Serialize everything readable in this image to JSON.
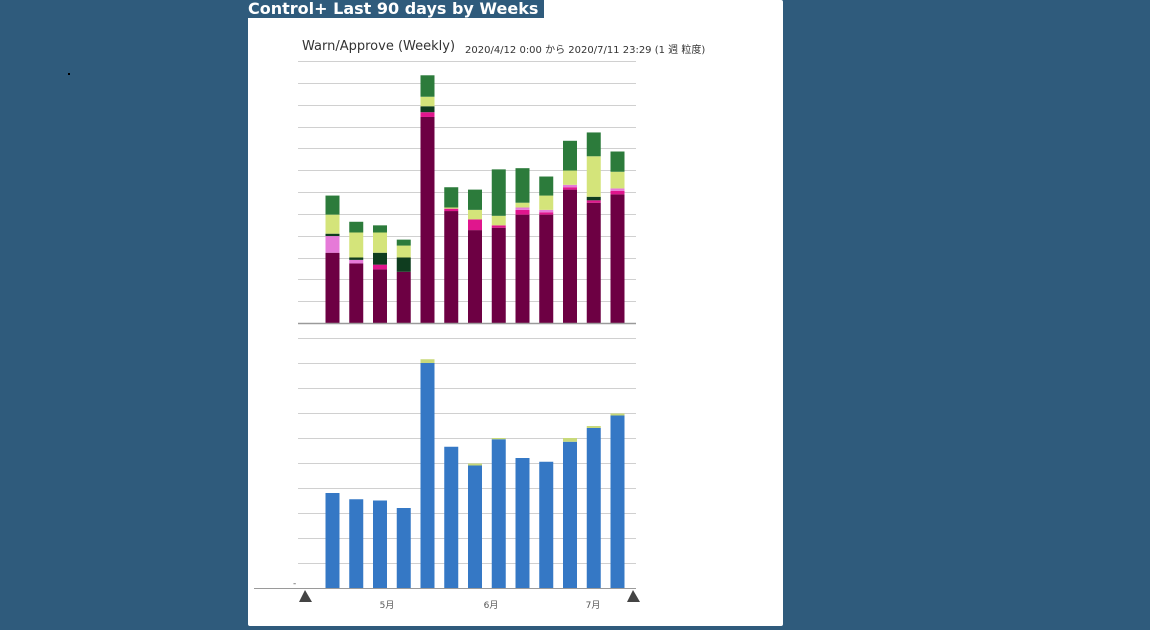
{
  "page": {
    "title": "Control+ Last 90 days by Weeks"
  },
  "chart_data": [
    {
      "type": "bar",
      "stacked": true,
      "title": "Warn/Approve (Weekly)",
      "subtitle": "2020/4/12 0:00 から 2020/7/11 23:29 (1 週 粒度)",
      "categories": [
        "2020-04-19",
        "2020-04-26",
        "2020-05-03",
        "2020-05-10",
        "2020-05-17",
        "2020-05-24",
        "2020-05-31",
        "2020-06-07",
        "2020-06-14",
        "2020-06-21",
        "2020-06-28",
        "2020-07-05",
        "2020-07-12"
      ],
      "xlabel": "",
      "ylabel": "",
      "ylim": [
        0,
        110
      ],
      "grid": true,
      "series": [
        {
          "color": "#6d0043",
          "values": [
            29.5,
            25,
            22.5,
            21.5,
            86.5,
            47,
            39,
            40,
            45.5,
            45.5,
            56,
            50.5,
            54
          ]
        },
        {
          "color": "#e0168d",
          "values": [
            0,
            0,
            2,
            0,
            2,
            1,
            4.5,
            1,
            2,
            1,
            1,
            1,
            1.5
          ]
        },
        {
          "color": "#e67ad8",
          "values": [
            7,
            1.5,
            0,
            0,
            0,
            0,
            0,
            0,
            1,
            1,
            1,
            0,
            1
          ]
        },
        {
          "color": "#0f3d1f",
          "values": [
            1,
            1,
            5,
            6,
            2.5,
            0,
            0,
            0,
            0,
            0,
            0,
            1.5,
            0
          ]
        },
        {
          "color": "#d4e47a",
          "values": [
            8,
            10.5,
            8.5,
            5,
            4,
            0.5,
            4,
            4,
            2,
            6,
            6,
            17,
            7
          ]
        },
        {
          "color": "#2c7b3b",
          "values": [
            8,
            4.5,
            3,
            2.5,
            9,
            8.5,
            8.5,
            19.5,
            14.5,
            8,
            12.5,
            10,
            8.5
          ]
        }
      ]
    },
    {
      "type": "bar",
      "stacked": true,
      "categories": [
        "2020-04-19",
        "2020-04-26",
        "2020-05-03",
        "2020-05-10",
        "2020-05-17",
        "2020-05-24",
        "2020-05-31",
        "2020-06-07",
        "2020-06-14",
        "2020-06-21",
        "2020-06-28",
        "2020-07-05",
        "2020-07-12"
      ],
      "xlabel": "",
      "ylabel": "",
      "ylim": [
        0,
        1000
      ],
      "grid": true,
      "x_tick_labels": [
        {
          "label": "5月",
          "at": "2020-05-01"
        },
        {
          "label": "6月",
          "at": "2020-06-01"
        },
        {
          "label": "7月",
          "at": "2020-07-01"
        }
      ],
      "series": [
        {
          "color": "#3578c5",
          "values": [
            380,
            355,
            350,
            320,
            900,
            565,
            490,
            595,
            520,
            505,
            585,
            640,
            690
          ]
        },
        {
          "color": "#c8d97a",
          "values": [
            0,
            0,
            0,
            0,
            15,
            0,
            8,
            5,
            0,
            0,
            15,
            8,
            8
          ]
        }
      ]
    }
  ]
}
